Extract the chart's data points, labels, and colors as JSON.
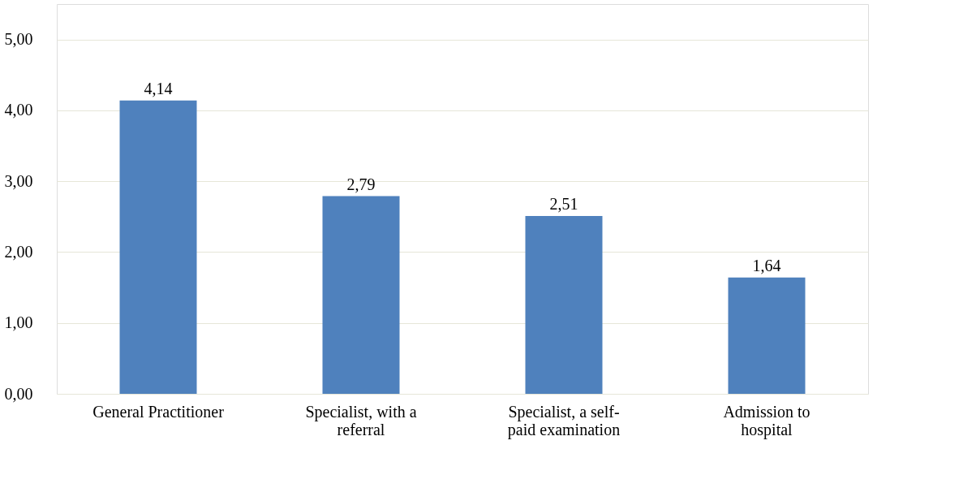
{
  "chart_data": {
    "type": "bar",
    "categories": [
      "General Practitioner",
      "Specialist, with a referral",
      "Specialist, a self-paid examination",
      "Admission to hospital"
    ],
    "values": [
      4.14,
      2.79,
      2.51,
      1.64
    ],
    "value_labels": [
      "4,14",
      "2,79",
      "2,51",
      "1,64"
    ],
    "color": "#4f81bd",
    "ylim": [
      0,
      5.5
    ],
    "yticks": [
      {
        "value": 0,
        "label": "0,00"
      },
      {
        "value": 1,
        "label": "1,00"
      },
      {
        "value": 2,
        "label": "2,00"
      },
      {
        "value": 3,
        "label": "3,00"
      },
      {
        "value": 4,
        "label": "4,00"
      },
      {
        "value": 5,
        "label": "5,00"
      }
    ],
    "grid": "y"
  }
}
